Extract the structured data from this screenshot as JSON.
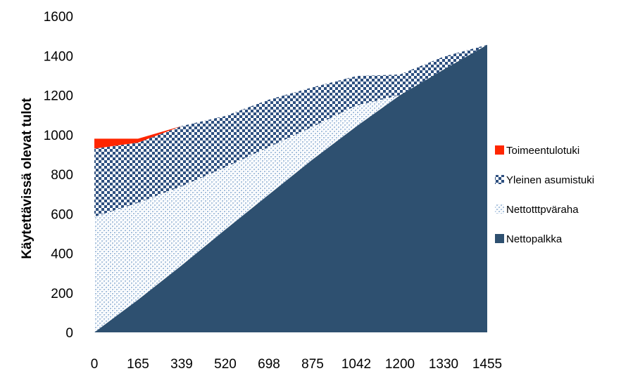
{
  "chart_data": {
    "type": "area",
    "stacked": true,
    "categories": [
      "0",
      "165",
      "339",
      "520",
      "698",
      "875",
      "1042",
      "1200",
      "1330",
      "1455"
    ],
    "ylabel": "Käytettävissä olevat tulot",
    "ylim": [
      0,
      1600
    ],
    "yticks": [
      "0",
      "200",
      "400",
      "600",
      "800",
      "1000",
      "1200",
      "1400",
      "1600"
    ],
    "grid": false,
    "legend_position": "right",
    "series": [
      {
        "name": "Nettopalkka",
        "color": "#2e5070",
        "pattern": "solid",
        "values": [
          0,
          165,
          339,
          520,
          698,
          875,
          1042,
          1200,
          1330,
          1455
        ]
      },
      {
        "name": "Nettotttpväraha",
        "color": "#a8c1dd",
        "pattern": "dots",
        "values": [
          585,
          490,
          400,
          315,
          240,
          165,
          105,
          0,
          0,
          0
        ]
      },
      {
        "name": "Yleinen asumistuki",
        "color": "#2e5080",
        "pattern": "checker",
        "values": [
          345,
          305,
          305,
          260,
          240,
          200,
          150,
          105,
          65,
          0
        ]
      },
      {
        "name": "Toimeentulotuki",
        "color": "#ff2600",
        "pattern": "solid",
        "values": [
          50,
          20,
          0,
          0,
          0,
          0,
          0,
          0,
          0,
          0
        ]
      }
    ]
  }
}
